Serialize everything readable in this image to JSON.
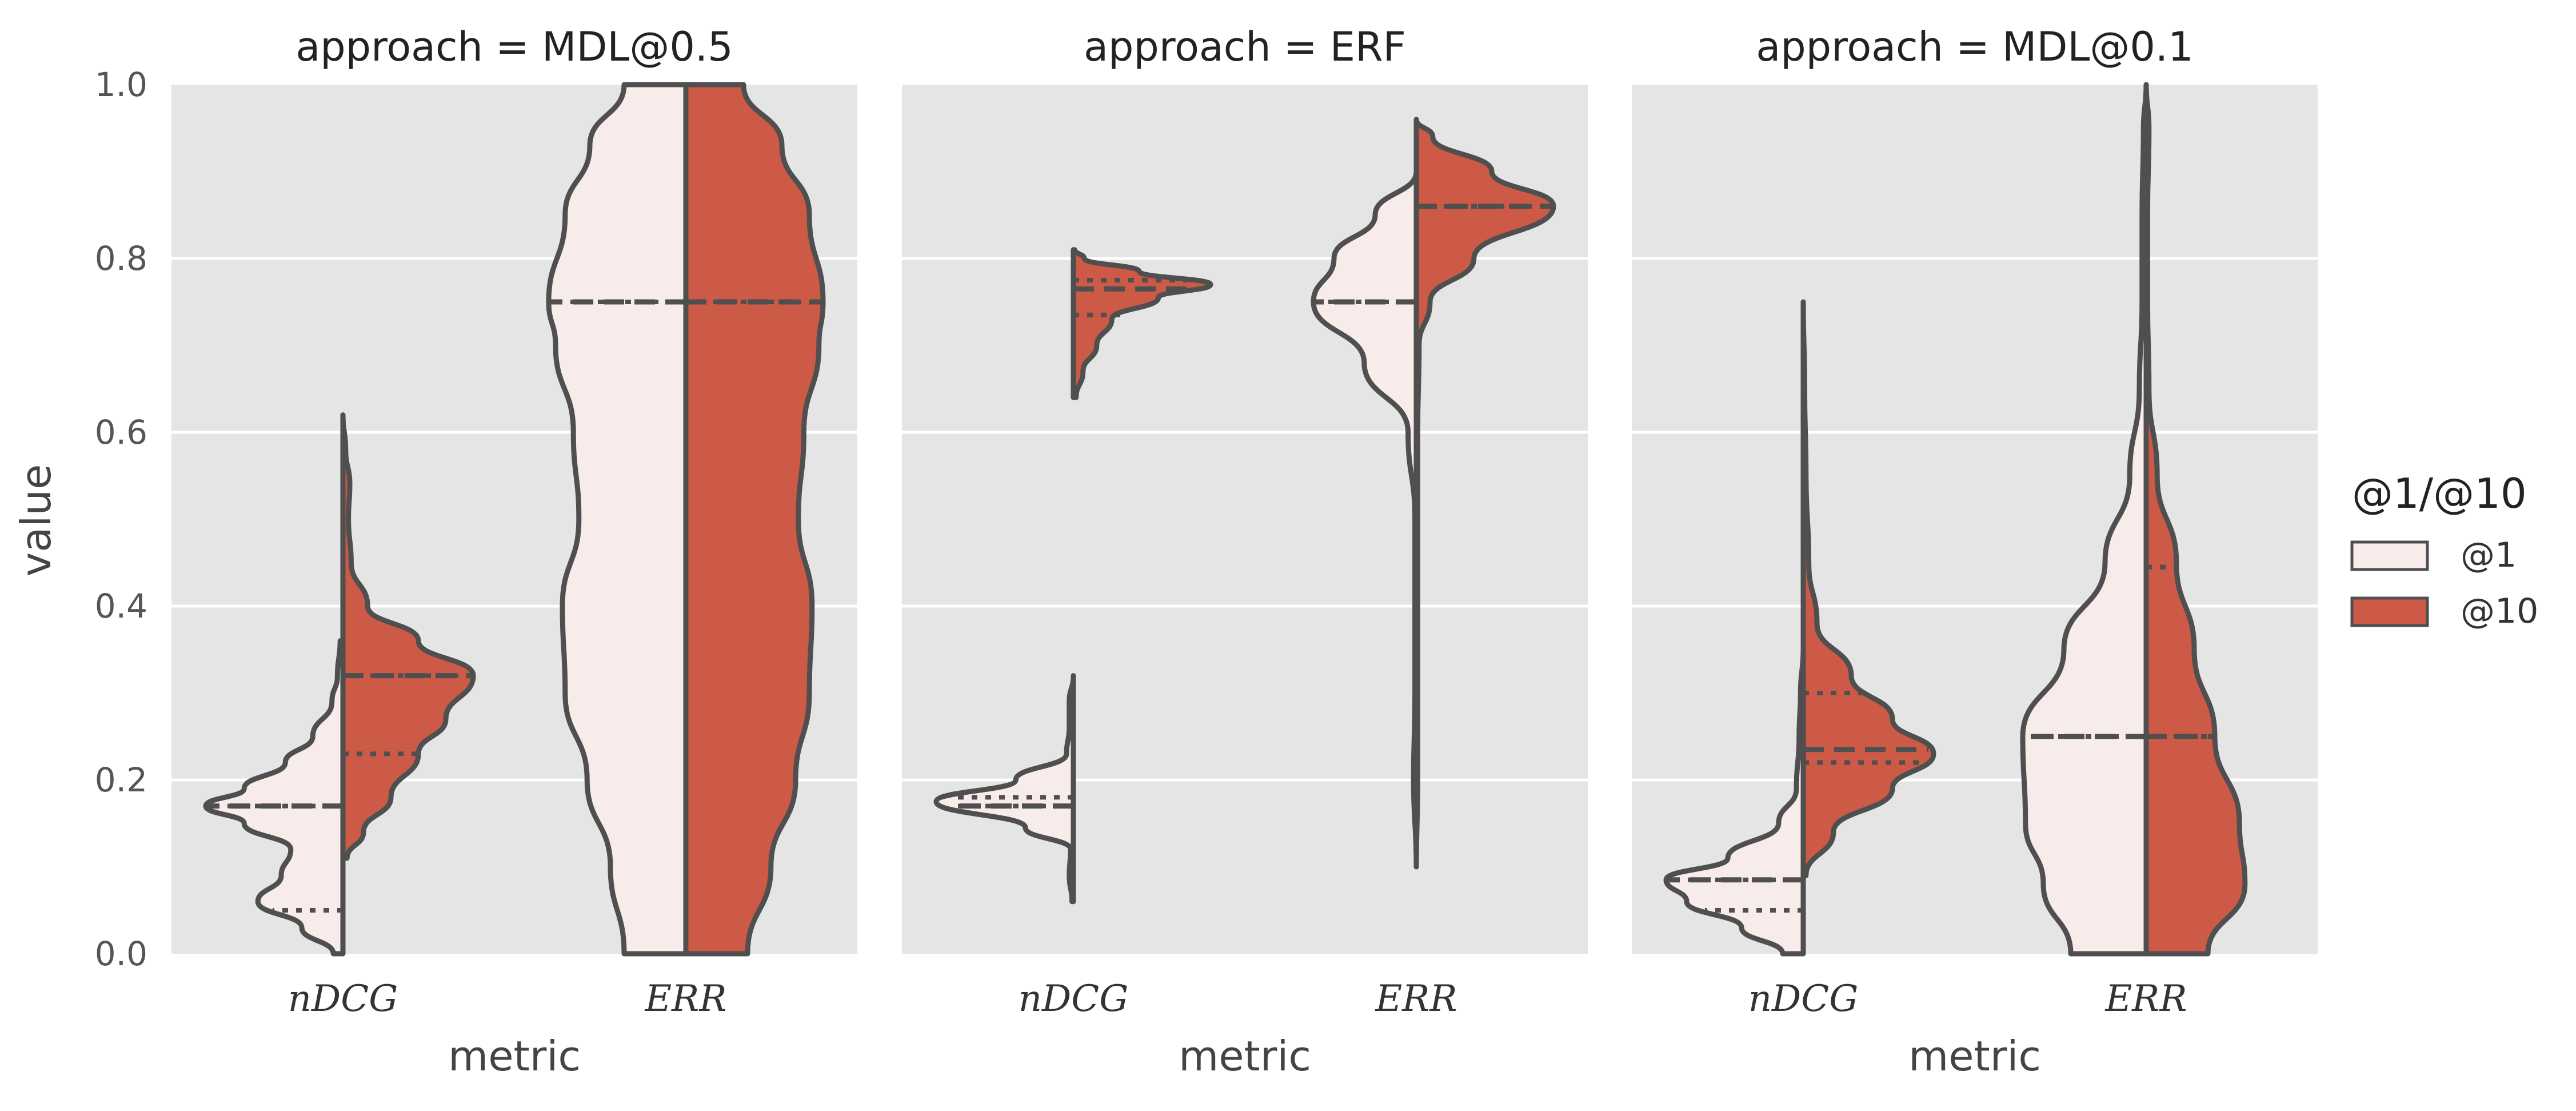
{
  "chart_data": {
    "type": "violin",
    "ylabel": "value",
    "xlabel": "metric",
    "ylim": [
      0.0,
      1.0
    ],
    "yticks": [
      "0.0",
      "0.2",
      "0.4",
      "0.6",
      "0.8",
      "1.0"
    ],
    "categories": [
      "nDCG",
      "ERR"
    ],
    "legend": {
      "title": "@1/@10",
      "placement": "right",
      "entries": [
        {
          "label": "@1",
          "color": "#f7ece9"
        },
        {
          "label": "@10",
          "color": "#cd5a46"
        }
      ]
    },
    "grid": true,
    "panels": [
      {
        "title": "approach = MDL@0.5",
        "violins": {
          "nDCG": {
            "@1": {
              "range": [
                0.0,
                0.36
              ],
              "median": 0.17,
              "q1": 0.05,
              "q3": 0.17,
              "density": [
                [
                  0.0,
                  0.07
                ],
                [
                  0.03,
                  0.3
                ],
                [
                  0.06,
                  0.62
                ],
                [
                  0.09,
                  0.45
                ],
                [
                  0.12,
                  0.38
                ],
                [
                  0.15,
                  0.72
                ],
                [
                  0.17,
                  1.0
                ],
                [
                  0.19,
                  0.72
                ],
                [
                  0.22,
                  0.42
                ],
                [
                  0.25,
                  0.22
                ],
                [
                  0.29,
                  0.08
                ],
                [
                  0.32,
                  0.04
                ],
                [
                  0.36,
                  0.02
                ]
              ]
            },
            "@10": {
              "range": [
                0.11,
                0.62
              ],
              "median": 0.32,
              "q1": 0.23,
              "q3": 0.32,
              "density": [
                [
                  0.11,
                  0.03
                ],
                [
                  0.14,
                  0.15
                ],
                [
                  0.18,
                  0.35
                ],
                [
                  0.23,
                  0.55
                ],
                [
                  0.27,
                  0.75
                ],
                [
                  0.32,
                  0.95
                ],
                [
                  0.36,
                  0.55
                ],
                [
                  0.4,
                  0.18
                ],
                [
                  0.45,
                  0.06
                ],
                [
                  0.5,
                  0.04
                ],
                [
                  0.54,
                  0.05
                ],
                [
                  0.58,
                  0.02
                ],
                [
                  0.62,
                  0.0
                ]
              ]
            }
          },
          "ERR": {
            "@1": {
              "range": [
                0.0,
                1.0
              ],
              "median": 0.75,
              "q1": 0.0,
              "q3": 0.75,
              "density": [
                [
                  0.0,
                  0.45
                ],
                [
                  0.1,
                  0.55
                ],
                [
                  0.2,
                  0.72
                ],
                [
                  0.3,
                  0.88
                ],
                [
                  0.4,
                  0.9
                ],
                [
                  0.5,
                  0.78
                ],
                [
                  0.6,
                  0.82
                ],
                [
                  0.7,
                  0.95
                ],
                [
                  0.75,
                  1.0
                ],
                [
                  0.85,
                  0.88
                ],
                [
                  0.93,
                  0.7
                ],
                [
                  1.0,
                  0.45
                ]
              ]
            },
            "@10": {
              "range": [
                0.0,
                1.0
              ],
              "median": 0.75,
              "q1": 0.0,
              "q3": 0.75,
              "density": [
                [
                  0.0,
                  0.45
                ],
                [
                  0.1,
                  0.62
                ],
                [
                  0.2,
                  0.8
                ],
                [
                  0.3,
                  0.9
                ],
                [
                  0.4,
                  0.92
                ],
                [
                  0.5,
                  0.82
                ],
                [
                  0.6,
                  0.86
                ],
                [
                  0.7,
                  0.97
                ],
                [
                  0.75,
                  1.0
                ],
                [
                  0.85,
                  0.9
                ],
                [
                  0.93,
                  0.7
                ],
                [
                  1.0,
                  0.42
                ]
              ]
            }
          }
        }
      },
      {
        "title": "approach = ERF",
        "violins": {
          "nDCG": {
            "@1": {
              "range": [
                0.06,
                0.32
              ],
              "median": 0.17,
              "q1": 0.17,
              "q3": 0.18,
              "density": [
                [
                  0.06,
                  0.01
                ],
                [
                  0.09,
                  0.03
                ],
                [
                  0.12,
                  0.02
                ],
                [
                  0.145,
                  0.35
                ],
                [
                  0.175,
                  1.0
                ],
                [
                  0.2,
                  0.42
                ],
                [
                  0.23,
                  0.05
                ],
                [
                  0.26,
                  0.03
                ],
                [
                  0.29,
                  0.03
                ],
                [
                  0.32,
                  0.0
                ]
              ]
            },
            "@10": {
              "range": [
                0.64,
                0.81
              ],
              "median": 0.765,
              "q1": 0.735,
              "q3": 0.775,
              "density": [
                [
                  0.64,
                  0.02
                ],
                [
                  0.67,
                  0.07
                ],
                [
                  0.7,
                  0.17
                ],
                [
                  0.73,
                  0.28
                ],
                [
                  0.755,
                  0.62
                ],
                [
                  0.77,
                  1.0
                ],
                [
                  0.785,
                  0.48
                ],
                [
                  0.8,
                  0.08
                ],
                [
                  0.81,
                  0.01
                ]
              ]
            }
          },
          "ERR": {
            "@1": {
              "range": [
                0.1,
                0.9
              ],
              "median": 0.75,
              "q1": 0.75,
              "q3": 0.75,
              "density": [
                [
                  0.1,
                  0.0
                ],
                [
                  0.2,
                  0.02
                ],
                [
                  0.3,
                  0.01
                ],
                [
                  0.4,
                  0.01
                ],
                [
                  0.5,
                  0.01
                ],
                [
                  0.6,
                  0.06
                ],
                [
                  0.68,
                  0.38
                ],
                [
                  0.75,
                  0.75
                ],
                [
                  0.8,
                  0.6
                ],
                [
                  0.85,
                  0.3
                ],
                [
                  0.9,
                  0.0
                ]
              ]
            },
            "@10": {
              "range": [
                0.1,
                0.96
              ],
              "median": 0.86,
              "q1": 0.86,
              "q3": 0.86,
              "density": [
                [
                  0.1,
                  0.0
                ],
                [
                  0.2,
                  0.01
                ],
                [
                  0.4,
                  0.01
                ],
                [
                  0.6,
                  0.01
                ],
                [
                  0.7,
                  0.02
                ],
                [
                  0.75,
                  0.1
                ],
                [
                  0.8,
                  0.42
                ],
                [
                  0.86,
                  1.0
                ],
                [
                  0.9,
                  0.55
                ],
                [
                  0.94,
                  0.12
                ],
                [
                  0.96,
                  0.0
                ]
              ]
            }
          }
        }
      },
      {
        "title": "approach = MDL@0.1",
        "violins": {
          "nDCG": {
            "@1": {
              "range": [
                0.0,
                0.35
              ],
              "median": 0.085,
              "q1": 0.05,
              "q3": 0.085,
              "density": [
                [
                  0.0,
                  0.15
                ],
                [
                  0.03,
                  0.45
                ],
                [
                  0.06,
                  0.85
                ],
                [
                  0.085,
                  1.0
                ],
                [
                  0.11,
                  0.55
                ],
                [
                  0.15,
                  0.18
                ],
                [
                  0.19,
                  0.05
                ],
                [
                  0.25,
                  0.03
                ],
                [
                  0.3,
                  0.02
                ],
                [
                  0.35,
                  0.0
                ]
              ]
            },
            "@10": {
              "range": [
                0.09,
                0.75
              ],
              "median": 0.235,
              "q1": 0.22,
              "q3": 0.3,
              "density": [
                [
                  0.09,
                  0.02
                ],
                [
                  0.14,
                  0.22
                ],
                [
                  0.19,
                  0.65
                ],
                [
                  0.23,
                  0.95
                ],
                [
                  0.27,
                  0.65
                ],
                [
                  0.32,
                  0.35
                ],
                [
                  0.38,
                  0.1
                ],
                [
                  0.45,
                  0.04
                ],
                [
                  0.55,
                  0.02
                ],
                [
                  0.65,
                  0.01
                ],
                [
                  0.75,
                  0.0
                ]
              ]
            }
          },
          "ERR": {
            "@1": {
              "range": [
                0.0,
                1.0
              ],
              "median": 0.25,
              "q1": 0.0,
              "q3": 0.25,
              "density": [
                [
                  0.0,
                  0.55
                ],
                [
                  0.08,
                  0.75
                ],
                [
                  0.15,
                  0.88
                ],
                [
                  0.25,
                  0.9
                ],
                [
                  0.35,
                  0.6
                ],
                [
                  0.45,
                  0.3
                ],
                [
                  0.55,
                  0.12
                ],
                [
                  0.65,
                  0.05
                ],
                [
                  0.75,
                  0.03
                ],
                [
                  0.85,
                  0.03
                ],
                [
                  0.95,
                  0.02
                ],
                [
                  1.0,
                  0.0
                ]
              ]
            },
            "@10": {
              "range": [
                0.0,
                1.0
              ],
              "median": 0.25,
              "q1": 0.25,
              "q3": 0.445,
              "density": [
                [
                  0.0,
                  0.45
                ],
                [
                  0.08,
                  0.72
                ],
                [
                  0.15,
                  0.68
                ],
                [
                  0.25,
                  0.5
                ],
                [
                  0.35,
                  0.35
                ],
                [
                  0.45,
                  0.22
                ],
                [
                  0.55,
                  0.08
                ],
                [
                  0.65,
                  0.02
                ],
                [
                  0.75,
                  0.01
                ],
                [
                  0.85,
                  0.01
                ],
                [
                  0.95,
                  0.02
                ],
                [
                  1.0,
                  0.0
                ]
              ]
            }
          }
        }
      }
    ]
  }
}
